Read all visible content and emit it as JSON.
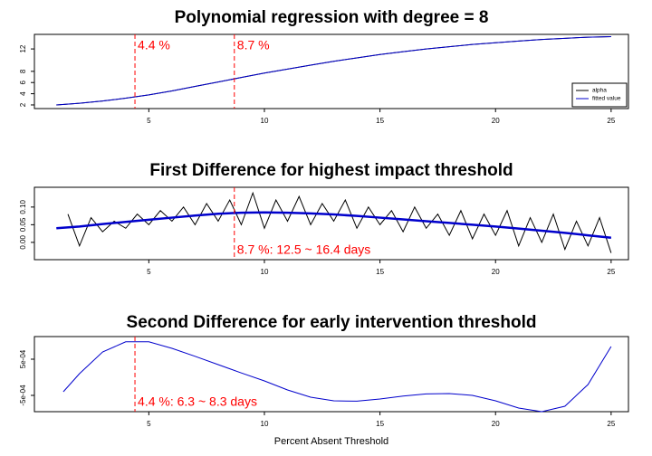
{
  "chart_data": [
    {
      "type": "line",
      "title": "Polynomial regression with degree = 8",
      "x": [
        1,
        2,
        3,
        4,
        5,
        6,
        7,
        8,
        9,
        10,
        11,
        12,
        13,
        14,
        15,
        16,
        17,
        18,
        19,
        20,
        21,
        22,
        23,
        24,
        25
      ],
      "series": [
        {
          "name": "alpha",
          "color": "#000000",
          "width": 1,
          "values": [
            2.0,
            2.3,
            2.7,
            3.2,
            3.8,
            4.5,
            5.3,
            6.1,
            6.9,
            7.7,
            8.4,
            9.1,
            9.8,
            10.4,
            11.0,
            11.5,
            12.0,
            12.4,
            12.8,
            13.1,
            13.4,
            13.7,
            13.9,
            14.1,
            14.2
          ]
        },
        {
          "name": "fitted value",
          "color": "#0000cc",
          "width": 1,
          "values": [
            2.0,
            2.3,
            2.7,
            3.2,
            3.8,
            4.5,
            5.3,
            6.1,
            6.9,
            7.7,
            8.4,
            9.1,
            9.8,
            10.4,
            11.0,
            11.5,
            12.0,
            12.4,
            12.8,
            13.1,
            13.4,
            13.7,
            13.9,
            14.1,
            14.2
          ]
        }
      ],
      "xlim": [
        0.05,
        25.75
      ],
      "xticks": [
        5,
        10,
        15,
        20,
        25
      ],
      "ylim": [
        1.35,
        14.6
      ],
      "yticks": [
        2,
        4,
        6,
        8,
        12
      ],
      "legend": "bottomright",
      "vlines": [
        {
          "x": 4.4,
          "label": "4.4 %",
          "color": "#ff0000"
        },
        {
          "x": 8.7,
          "label": "8.7 %",
          "color": "#ff0000"
        }
      ]
    },
    {
      "type": "line",
      "title": "First Difference for highest impact threshold",
      "x": [
        1.5,
        2,
        2.5,
        3,
        3.5,
        4,
        4.5,
        5,
        5.5,
        6,
        6.5,
        7,
        7.5,
        8,
        8.5,
        9,
        9.5,
        10,
        10.5,
        11,
        11.5,
        12,
        12.5,
        13,
        13.5,
        14,
        14.5,
        15,
        15.5,
        16,
        16.5,
        17,
        17.5,
        18,
        18.5,
        19,
        19.5,
        20,
        20.5,
        21,
        21.5,
        22,
        22.5,
        23,
        23.5,
        24,
        24.5,
        25
      ],
      "series": [
        {
          "color": "#000000",
          "width": 1,
          "values": [
            0.08,
            -0.01,
            0.07,
            0.03,
            0.06,
            0.04,
            0.08,
            0.05,
            0.09,
            0.06,
            0.1,
            0.05,
            0.11,
            0.06,
            0.12,
            0.05,
            0.14,
            0.04,
            0.12,
            0.06,
            0.13,
            0.05,
            0.11,
            0.06,
            0.12,
            0.04,
            0.1,
            0.05,
            0.09,
            0.03,
            0.1,
            0.04,
            0.08,
            0.02,
            0.09,
            0.01,
            0.08,
            0.02,
            0.09,
            -0.01,
            0.07,
            0.0,
            0.08,
            -0.02,
            0.06,
            -0.01,
            0.07,
            -0.03
          ]
        },
        {
          "color": "#0000cc",
          "width": 2.5,
          "x": [
            1,
            2,
            3,
            4,
            5,
            6,
            7,
            8,
            9,
            10,
            11,
            12,
            13,
            14,
            15,
            16,
            17,
            18,
            19,
            20,
            21,
            22,
            23,
            24,
            25
          ],
          "values": [
            0.04,
            0.045,
            0.052,
            0.058,
            0.064,
            0.07,
            0.076,
            0.081,
            0.084,
            0.085,
            0.084,
            0.082,
            0.079,
            0.075,
            0.07,
            0.065,
            0.06,
            0.055,
            0.05,
            0.045,
            0.039,
            0.033,
            0.027,
            0.02,
            0.013
          ]
        }
      ],
      "xlim": [
        0.05,
        25.75
      ],
      "xticks": [
        5,
        10,
        15,
        20,
        25
      ],
      "ylim": [
        -0.049,
        0.156
      ],
      "yticks": [
        {
          "value": 0,
          "label": "0.00"
        },
        {
          "value": 0.05,
          "label": "0.05"
        },
        {
          "value": 0.1,
          "label": "0.10"
        }
      ],
      "vlines": [
        {
          "x": 8.7,
          "label": "8.7 %: 12.5 ~ 16.4 days",
          "color": "#ff0000"
        }
      ]
    },
    {
      "type": "line",
      "title": "Second Difference for early intervention threshold",
      "x_label": "Percent Absent Threshold",
      "x": [
        1.3,
        2,
        3,
        4,
        5,
        6,
        7,
        8,
        9,
        10,
        11,
        12,
        13,
        14,
        15,
        16,
        17,
        18,
        19,
        20,
        21,
        22,
        23,
        24,
        25
      ],
      "series": [
        {
          "color": "#0000cc",
          "width": 1,
          "values": [
            -0.0004,
            0.0001,
            0.0007,
            0.00098,
            0.00098,
            0.0008,
            0.00058,
            0.00035,
            0.00012,
            -0.0001,
            -0.00035,
            -0.00055,
            -0.00065,
            -0.00066,
            -0.0006,
            -0.00052,
            -0.00046,
            -0.00045,
            -0.0005,
            -0.00065,
            -0.00085,
            -0.00095,
            -0.0008,
            -0.0002,
            0.00085
          ]
        }
      ],
      "xlim": [
        0.05,
        25.75
      ],
      "xticks": [
        5,
        10,
        15,
        20,
        25
      ],
      "ylim": [
        -0.00095,
        0.001125
      ],
      "yticks": [
        {
          "value": 0.0005,
          "label": "5e-04"
        },
        {
          "value": -0.0005,
          "label": "-5e-04"
        }
      ],
      "vlines": [
        {
          "x": 4.4,
          "label": "4.4 %: 6.3 ~ 8.3 days",
          "color": "#ff0000"
        }
      ]
    }
  ]
}
